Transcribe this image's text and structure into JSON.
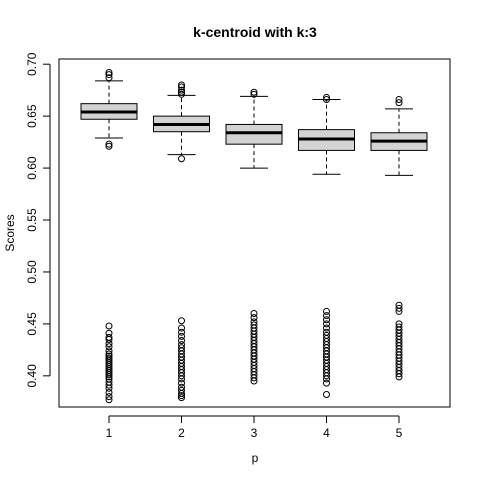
{
  "chart_data": {
    "type": "boxplot",
    "title": "k-centroid with k:3",
    "xlabel": "p",
    "ylabel": "Scores",
    "categories": [
      "1",
      "2",
      "3",
      "4",
      "5"
    ],
    "ylim": [
      0.37,
      0.705
    ],
    "yticks": [
      "0.40",
      "0.45",
      "0.50",
      "0.55",
      "0.60",
      "0.65",
      "0.70"
    ],
    "box_fill": "#d3d3d3",
    "boxes": [
      {
        "category": "1",
        "min": 0.629,
        "q1": 0.647,
        "median": 0.654,
        "q3": 0.662,
        "max": 0.684
      },
      {
        "category": "2",
        "min": 0.613,
        "q1": 0.635,
        "median": 0.642,
        "q3": 0.65,
        "max": 0.67
      },
      {
        "category": "3",
        "min": 0.6,
        "q1": 0.623,
        "median": 0.634,
        "q3": 0.642,
        "max": 0.669
      },
      {
        "category": "4",
        "min": 0.594,
        "q1": 0.617,
        "median": 0.628,
        "q3": 0.637,
        "max": 0.666
      },
      {
        "category": "5",
        "min": 0.593,
        "q1": 0.617,
        "median": 0.626,
        "q3": 0.634,
        "max": 0.657
      }
    ],
    "outliers": [
      {
        "category": "1",
        "values": [
          0.692,
          0.69,
          0.687,
          0.623,
          0.621,
          0.448,
          0.441,
          0.437,
          0.435,
          0.431,
          0.428,
          0.424,
          0.421,
          0.419,
          0.417,
          0.415,
          0.413,
          0.411,
          0.409,
          0.407,
          0.405,
          0.403,
          0.401,
          0.399,
          0.397,
          0.394,
          0.391,
          0.388,
          0.384,
          0.38,
          0.377
        ]
      },
      {
        "category": "2",
        "values": [
          0.68,
          0.678,
          0.675,
          0.673,
          0.671,
          0.609,
          0.453,
          0.446,
          0.442,
          0.438,
          0.434,
          0.43,
          0.427,
          0.424,
          0.421,
          0.418,
          0.415,
          0.412,
          0.409,
          0.406,
          0.403,
          0.4,
          0.397,
          0.393,
          0.389,
          0.386,
          0.383,
          0.381,
          0.379
        ]
      },
      {
        "category": "3",
        "values": [
          0.673,
          0.671,
          0.46,
          0.456,
          0.452,
          0.449,
          0.446,
          0.443,
          0.44,
          0.437,
          0.434,
          0.431,
          0.428,
          0.425,
          0.422,
          0.419,
          0.416,
          0.413,
          0.41,
          0.407,
          0.404,
          0.401,
          0.398,
          0.395
        ]
      },
      {
        "category": "4",
        "values": [
          0.668,
          0.666,
          0.462,
          0.458,
          0.454,
          0.45,
          0.446,
          0.442,
          0.439,
          0.436,
          0.433,
          0.43,
          0.427,
          0.424,
          0.421,
          0.418,
          0.415,
          0.412,
          0.409,
          0.406,
          0.403,
          0.4,
          0.397,
          0.393,
          0.382
        ]
      },
      {
        "category": "5",
        "values": [
          0.666,
          0.663,
          0.468,
          0.465,
          0.462,
          0.45,
          0.447,
          0.444,
          0.441,
          0.438,
          0.435,
          0.432,
          0.429,
          0.426,
          0.423,
          0.42,
          0.417,
          0.414,
          0.411,
          0.408,
          0.405,
          0.402,
          0.399
        ]
      }
    ]
  }
}
